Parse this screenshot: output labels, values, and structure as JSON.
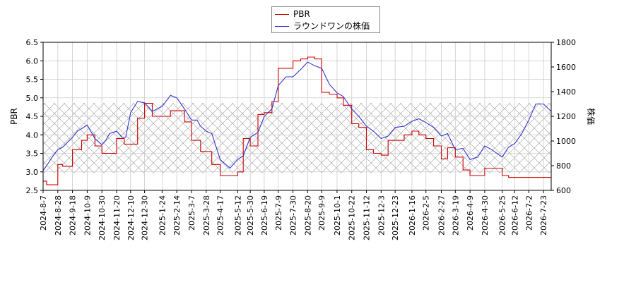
{
  "chart_data": {
    "type": "line",
    "xlabel": "",
    "x_ticks": [
      "2024-8-7",
      "2024-8-28",
      "2024-9-18",
      "2024-10-9",
      "2024-10-30",
      "2024-11-20",
      "2024-12-10",
      "2024-12-30",
      "2025-1-24",
      "2025-2-14",
      "2025-3-7",
      "2025-3-28",
      "2025-4-17",
      "2025-5-12",
      "2025-5-30",
      "2025-6-19",
      "2025-7-9",
      "2025-7-30",
      "2025-8-20",
      "2025-9-9",
      "2025-10-1",
      "2025-10-22",
      "2025-11-12",
      "2025-12-3",
      "2025-12-23",
      "2026-1-16",
      "2026-2-5",
      "2026-2-27",
      "2026-3-19",
      "2026-4-9",
      "2026-4-30",
      "2026-5-25",
      "2026-6-12",
      "2026-7-2",
      "2026-7-23"
    ],
    "y_left": {
      "label": "PBR",
      "range": [
        2.5,
        6.5
      ],
      "ticks": [
        "2.5",
        "3.0",
        "3.5",
        "4.0",
        "4.5",
        "5.0",
        "5.5",
        "6.0",
        "6.5"
      ]
    },
    "y_right": {
      "label": "株価",
      "range": [
        600,
        1800
      ],
      "ticks": [
        "600",
        "800",
        "1000",
        "1200",
        "1400",
        "1600",
        "1800"
      ]
    },
    "grid": true,
    "hatched_band": {
      "axis": "left",
      "y_from": 2.97,
      "y_to": 4.86
    },
    "legend_position": "top-center",
    "series": [
      {
        "name": "PBR",
        "axis": "left",
        "color": "#cc0000",
        "x": [
          "2024-8-7",
          "2024-8-12",
          "2024-8-28",
          "2024-9-4",
          "2024-9-18",
          "2024-10-1",
          "2024-10-9",
          "2024-10-20",
          "2024-10-30",
          "2024-11-10",
          "2024-11-20",
          "2024-12-1",
          "2024-12-10",
          "2024-12-20",
          "2024-12-30",
          "2025-1-10",
          "2025-1-24",
          "2025-2-5",
          "2025-2-14",
          "2025-2-25",
          "2025-3-7",
          "2025-3-20",
          "2025-3-28",
          "2025-4-5",
          "2025-4-17",
          "2025-5-1",
          "2025-5-12",
          "2025-5-20",
          "2025-5-30",
          "2025-6-10",
          "2025-6-19",
          "2025-6-30",
          "2025-7-9",
          "2025-7-20",
          "2025-7-30",
          "2025-8-10",
          "2025-8-20",
          "2025-8-30",
          "2025-9-9",
          "2025-9-20",
          "2025-10-1",
          "2025-10-10",
          "2025-10-22",
          "2025-11-1",
          "2025-11-12",
          "2025-11-22",
          "2025-12-3",
          "2025-12-13",
          "2025-12-23",
          "2026-1-5",
          "2026-1-16",
          "2026-1-26",
          "2026-2-5",
          "2026-2-16",
          "2026-2-27",
          "2026-3-8",
          "2026-3-19",
          "2026-3-30",
          "2026-4-9",
          "2026-4-20",
          "2026-4-30",
          "2026-5-10",
          "2026-5-25",
          "2026-6-3",
          "2026-6-12",
          "2026-6-22",
          "2026-7-2",
          "2026-7-12",
          "2026-7-23",
          "2026-8-3"
        ],
        "values": [
          2.75,
          2.65,
          3.2,
          3.15,
          3.6,
          3.85,
          4.0,
          3.7,
          3.5,
          3.5,
          3.9,
          3.75,
          3.75,
          4.45,
          4.85,
          4.5,
          4.5,
          4.65,
          4.65,
          4.35,
          3.85,
          3.55,
          3.55,
          3.2,
          2.9,
          2.9,
          3.0,
          3.9,
          3.7,
          4.55,
          4.6,
          4.9,
          5.8,
          5.8,
          6.0,
          6.05,
          6.1,
          6.05,
          5.15,
          5.1,
          5.0,
          4.8,
          4.3,
          4.2,
          3.6,
          3.5,
          3.45,
          3.85,
          3.85,
          4.0,
          4.1,
          4.0,
          3.9,
          3.7,
          3.35,
          3.65,
          3.4,
          3.05,
          2.9,
          2.9,
          3.1,
          3.1,
          2.9,
          2.85,
          2.85,
          2.85,
          2.85,
          2.85,
          2.85,
          2.85
        ]
      },
      {
        "name": "ラウンドワンの株価",
        "axis": "right",
        "color": "#3333cc",
        "x": [
          "2024-8-7",
          "2024-8-12",
          "2024-8-20",
          "2024-8-28",
          "2024-9-4",
          "2024-9-18",
          "2024-9-25",
          "2024-10-1",
          "2024-10-9",
          "2024-10-20",
          "2024-10-30",
          "2024-11-5",
          "2024-11-10",
          "2024-11-20",
          "2024-11-28",
          "2024-12-3",
          "2024-12-10",
          "2024-12-20",
          "2024-12-30",
          "2025-1-10",
          "2025-1-24",
          "2025-2-5",
          "2025-2-14",
          "2025-2-25",
          "2025-3-7",
          "2025-3-15",
          "2025-3-20",
          "2025-3-28",
          "2025-4-5",
          "2025-4-17",
          "2025-5-1",
          "2025-5-12",
          "2025-5-20",
          "2025-5-30",
          "2025-6-10",
          "2025-6-19",
          "2025-6-30",
          "2025-7-9",
          "2025-7-20",
          "2025-7-30",
          "2025-8-10",
          "2025-8-20",
          "2025-8-30",
          "2025-9-9",
          "2025-9-20",
          "2025-10-1",
          "2025-10-10",
          "2025-10-22",
          "2025-11-1",
          "2025-11-12",
          "2025-11-22",
          "2025-12-3",
          "2025-12-13",
          "2025-12-23",
          "2026-1-5",
          "2026-1-16",
          "2026-1-26",
          "2026-2-5",
          "2026-2-16",
          "2026-2-27",
          "2026-3-8",
          "2026-3-19",
          "2026-3-30",
          "2026-4-9",
          "2026-4-20",
          "2026-4-30",
          "2026-5-10",
          "2026-5-25",
          "2026-6-3",
          "2026-6-12",
          "2026-6-22",
          "2026-7-2",
          "2026-7-12",
          "2026-7-23",
          "2026-8-3"
        ],
        "values": [
          760,
          800,
          870,
          930,
          950,
          1030,
          1080,
          1100,
          1130,
          1020,
          970,
          1010,
          1060,
          1080,
          1030,
          1030,
          1230,
          1320,
          1310,
          1240,
          1280,
          1370,
          1350,
          1260,
          1170,
          1170,
          1120,
          1080,
          1060,
          850,
          780,
          850,
          880,
          1030,
          1070,
          1200,
          1260,
          1450,
          1520,
          1520,
          1580,
          1640,
          1610,
          1590,
          1460,
          1390,
          1360,
          1260,
          1200,
          1120,
          1080,
          1020,
          1040,
          1110,
          1120,
          1160,
          1180,
          1150,
          1110,
          1040,
          1060,
          930,
          940,
          850,
          870,
          960,
          930,
          870,
          950,
          980,
          1060,
          1170,
          1300,
          1300,
          1240
        ]
      }
    ]
  }
}
